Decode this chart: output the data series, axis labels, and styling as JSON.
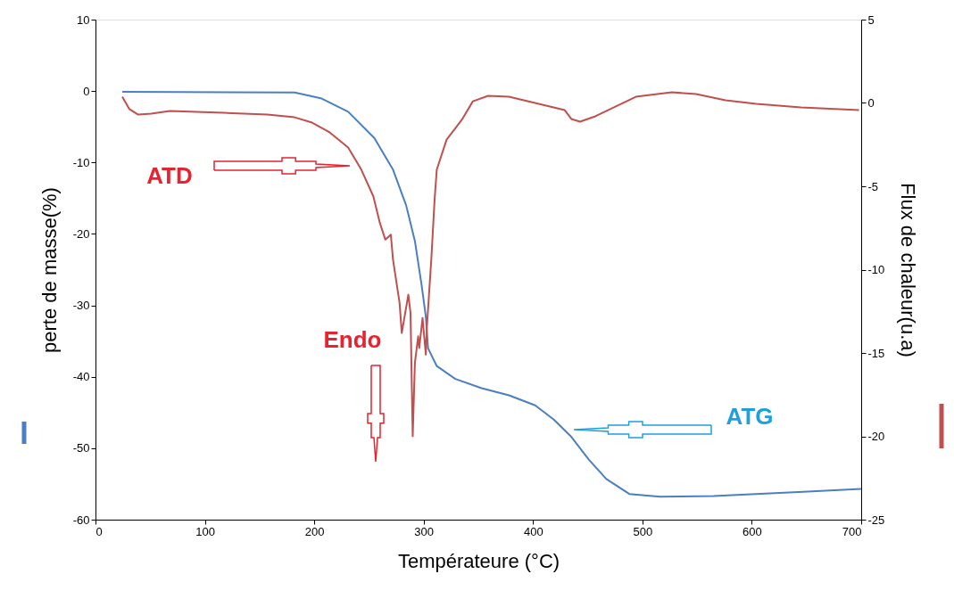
{
  "chart_data": {
    "type": "line",
    "xlabel": "Températeure (°C)",
    "ylabel": "perte de masse(%)",
    "y2label": "Flux de chaleur(u.a)",
    "xlim": [
      0,
      700
    ],
    "xticks": [
      0,
      100,
      200,
      300,
      400,
      500,
      600,
      700
    ],
    "ylim": [
      -60,
      10
    ],
    "yticks": [
      -60,
      -50,
      -40,
      -30,
      -20,
      -10,
      0,
      10
    ],
    "y2lim": [
      -25,
      5
    ],
    "y2ticks": [
      -25,
      -20,
      -15,
      -10,
      -5,
      0,
      5
    ],
    "line_style": "solid",
    "series": [
      {
        "color": "#4a7fc1",
        "x": [
          24.5,
          182,
          206,
          231,
          255,
          272,
          284,
          292,
          298,
          302,
          304,
          312,
          329,
          353,
          378,
          402,
          419,
          435,
          451,
          467,
          488,
          516,
          565,
          647,
          700
        ],
        "values": [
          -0.1,
          -0.2,
          -1,
          -2.9,
          -6.6,
          -11,
          -16,
          -21,
          -27,
          -31.6,
          -36,
          -38.5,
          -40.3,
          -41.6,
          -42.6,
          -44,
          -46,
          -48.4,
          -51.6,
          -54.3,
          -56.4,
          -56.8,
          -56.7,
          -56.1,
          -55.7
        ]
      },
      {
        "color": "#c0504d",
        "axis": "y2",
        "x": [
          24.5,
          31,
          39,
          51,
          68,
          117,
          157,
          182,
          198,
          214,
          231,
          243,
          254,
          260,
          265,
          270,
          272,
          278,
          280,
          286,
          288,
          290,
          292,
          295,
          296,
          299,
          302,
          303,
          307,
          310,
          312,
          321,
          335,
          345,
          359,
          378,
          429,
          435,
          443,
          457,
          494,
          527,
          549,
          576,
          604,
          645,
          698
        ],
        "values": [
          0.37,
          -0.37,
          -0.7,
          -0.64,
          -0.48,
          -0.59,
          -0.7,
          -0.86,
          -1.18,
          -1.76,
          -2.67,
          -4.0,
          -5.6,
          -7.2,
          -8.2,
          -7.9,
          -9.4,
          -12.0,
          -13.8,
          -11.5,
          -12.6,
          -20.0,
          -15.6,
          -14.0,
          -14.7,
          -12.9,
          -15.1,
          -13.4,
          -9.4,
          -5.8,
          -4.0,
          -2.2,
          -1.0,
          0.1,
          0.43,
          0.37,
          -0.43,
          -0.96,
          -1.12,
          -0.8,
          0.37,
          0.64,
          0.53,
          0.16,
          -0.05,
          -0.27,
          -0.43
        ]
      }
    ],
    "annotations": [
      "ATD",
      "Endo",
      "ATG"
    ]
  }
}
